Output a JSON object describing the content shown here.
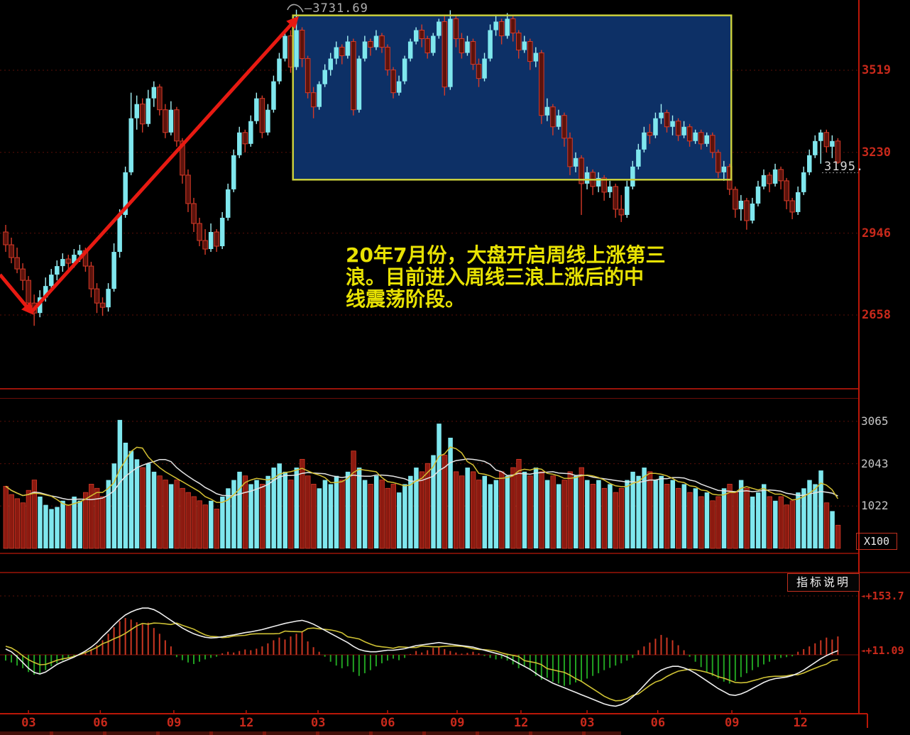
{
  "annotation": {
    "lines": [
      "20年7月份，大盘开启周线上涨第三",
      "浪。目前进入周线三浪上涨后的中",
      "线震荡阶段。"
    ]
  },
  "main_pane": {
    "peak_label": "—3731.69",
    "last_price_label": "3195."
  },
  "volume_pane": {
    "unit": "X100"
  },
  "indicator_pane": {
    "button_label": "指标说明",
    "labels": [
      {
        "marker": "◄",
        "text": "+153.7",
        "value": 153.7
      },
      {
        "marker": "◄",
        "text": "+11.09",
        "value": 11.09
      }
    ]
  },
  "x_axis": {
    "ticks": [
      {
        "label": "03",
        "week": 4.0
      },
      {
        "label": "06",
        "week": 16.6
      },
      {
        "label": "09",
        "week": 29.5
      },
      {
        "label": "12",
        "week": 42.2
      },
      {
        "label": "03",
        "week": 54.8
      },
      {
        "label": "06",
        "week": 67.0
      },
      {
        "label": "09",
        "week": 79.2
      },
      {
        "label": "12",
        "week": 90.4
      },
      {
        "label": "03",
        "week": 102.0
      },
      {
        "label": "06",
        "week": 114.4
      },
      {
        "label": "09",
        "week": 127.4
      },
      {
        "label": "12",
        "week": 139.4
      }
    ]
  },
  "colors": {
    "background": "#000000",
    "up": "#7fe7ee",
    "up_wick": "#a5f2f6",
    "down_fill": "#5c130c",
    "down_stroke": "#d53a28",
    "volume_down_fill": "#8c1a10",
    "macd_positive": "#cc3722",
    "macd_negative": "#21a121",
    "dif_line": "#efefef",
    "dea_line": "#cfc234",
    "volume_ma5": "#d4c032",
    "volume_ma10": "#e4e4e4",
    "grid_dashed": "#5a0f08",
    "pane_border": "#9c1409",
    "axis_line": "#bb1708",
    "box_fill": "#0d3066",
    "box_border": "#c9cf3d",
    "arrow": "#e81a12",
    "hook": "#a8a8a8",
    "dotted_price_line": "#999999"
  },
  "chart_data": {
    "type": "candlestick",
    "panes": [
      "price",
      "volume",
      "macd"
    ],
    "price_gridlines": [
      3519,
      3230,
      2946,
      2658
    ],
    "volume_gridlines": [
      3065,
      2043,
      1022
    ],
    "indicator_gridlines": [
      153.7
    ],
    "peak_marker": {
      "week": 51,
      "price": 3731.69
    },
    "last_close": 3195,
    "candles": [
      [
        2950,
        2975,
        2880,
        2905
      ],
      [
        2905,
        2930,
        2840,
        2860
      ],
      [
        2860,
        2895,
        2805,
        2820
      ],
      [
        2820,
        2840,
        2745,
        2780
      ],
      [
        2780,
        2795,
        2680,
        2700
      ],
      [
        2700,
        2730,
        2620,
        2665
      ],
      [
        2665,
        2745,
        2650,
        2720
      ],
      [
        2720,
        2790,
        2705,
        2760
      ],
      [
        2760,
        2820,
        2740,
        2800
      ],
      [
        2800,
        2850,
        2780,
        2830
      ],
      [
        2830,
        2875,
        2810,
        2855
      ],
      [
        2855,
        2870,
        2815,
        2840
      ],
      [
        2840,
        2890,
        2825,
        2870
      ],
      [
        2870,
        2905,
        2845,
        2885
      ],
      [
        2885,
        2895,
        2810,
        2830
      ],
      [
        2830,
        2845,
        2720,
        2750
      ],
      [
        2750,
        2770,
        2665,
        2700
      ],
      [
        2700,
        2720,
        2655,
        2685
      ],
      [
        2685,
        2770,
        2670,
        2750
      ],
      [
        2750,
        2910,
        2740,
        2880
      ],
      [
        2880,
        3030,
        2860,
        3010
      ],
      [
        3010,
        3180,
        3000,
        3160
      ],
      [
        3160,
        3440,
        3150,
        3350
      ],
      [
        3350,
        3430,
        3310,
        3400
      ],
      [
        3400,
        3420,
        3300,
        3330
      ],
      [
        3330,
        3450,
        3320,
        3420
      ],
      [
        3420,
        3480,
        3390,
        3460
      ],
      [
        3460,
        3470,
        3360,
        3380
      ],
      [
        3380,
        3400,
        3280,
        3300
      ],
      [
        3300,
        3410,
        3290,
        3380
      ],
      [
        3380,
        3390,
        3250,
        3270
      ],
      [
        3270,
        3280,
        3120,
        3150
      ],
      [
        3150,
        3170,
        3020,
        3050
      ],
      [
        3050,
        3070,
        2950,
        2980
      ],
      [
        2980,
        3000,
        2900,
        2920
      ],
      [
        2920,
        2960,
        2870,
        2890
      ],
      [
        2890,
        2980,
        2880,
        2950
      ],
      [
        2950,
        2960,
        2880,
        2900
      ],
      [
        2900,
        3020,
        2890,
        3000
      ],
      [
        3000,
        3120,
        2990,
        3100
      ],
      [
        3100,
        3240,
        3090,
        3220
      ],
      [
        3220,
        3320,
        3210,
        3300
      ],
      [
        3300,
        3310,
        3230,
        3260
      ],
      [
        3260,
        3360,
        3250,
        3340
      ],
      [
        3340,
        3440,
        3330,
        3420
      ],
      [
        3420,
        3430,
        3280,
        3300
      ],
      [
        3300,
        3400,
        3290,
        3380
      ],
      [
        3380,
        3500,
        3370,
        3480
      ],
      [
        3480,
        3580,
        3470,
        3560
      ],
      [
        3560,
        3660,
        3550,
        3640
      ],
      [
        3640,
        3660,
        3510,
        3530
      ],
      [
        3530,
        3732,
        3520,
        3660
      ],
      [
        3660,
        3670,
        3530,
        3560
      ],
      [
        3560,
        3570,
        3420,
        3440
      ],
      [
        3440,
        3460,
        3350,
        3390
      ],
      [
        3390,
        3480,
        3380,
        3470
      ],
      [
        3470,
        3540,
        3460,
        3520
      ],
      [
        3520,
        3580,
        3500,
        3560
      ],
      [
        3560,
        3620,
        3540,
        3600
      ],
      [
        3600,
        3610,
        3540,
        3570
      ],
      [
        3570,
        3640,
        3560,
        3620
      ],
      [
        3620,
        3630,
        3360,
        3380
      ],
      [
        3380,
        3570,
        3370,
        3560
      ],
      [
        3560,
        3640,
        3550,
        3620
      ],
      [
        3620,
        3630,
        3570,
        3600
      ],
      [
        3600,
        3660,
        3590,
        3640
      ],
      [
        3640,
        3650,
        3580,
        3600
      ],
      [
        3600,
        3610,
        3500,
        3520
      ],
      [
        3520,
        3530,
        3420,
        3440
      ],
      [
        3440,
        3500,
        3430,
        3480
      ],
      [
        3480,
        3570,
        3470,
        3560
      ],
      [
        3560,
        3630,
        3550,
        3620
      ],
      [
        3620,
        3670,
        3610,
        3660
      ],
      [
        3660,
        3680,
        3600,
        3630
      ],
      [
        3630,
        3640,
        3560,
        3580
      ],
      [
        3580,
        3650,
        3570,
        3640
      ],
      [
        3640,
        3700,
        3630,
        3690
      ],
      [
        3690,
        3715,
        3430,
        3460
      ],
      [
        3460,
        3730,
        3450,
        3700
      ],
      [
        3700,
        3710,
        3600,
        3630
      ],
      [
        3630,
        3650,
        3560,
        3580
      ],
      [
        3580,
        3640,
        3570,
        3620
      ],
      [
        3620,
        3630,
        3520,
        3540
      ],
      [
        3540,
        3560,
        3460,
        3490
      ],
      [
        3490,
        3580,
        3480,
        3560
      ],
      [
        3560,
        3680,
        3550,
        3660
      ],
      [
        3660,
        3715,
        3640,
        3690
      ],
      [
        3690,
        3700,
        3610,
        3640
      ],
      [
        3640,
        3720,
        3630,
        3700
      ],
      [
        3700,
        3710,
        3620,
        3650
      ],
      [
        3650,
        3660,
        3560,
        3590
      ],
      [
        3590,
        3640,
        3580,
        3620
      ],
      [
        3620,
        3630,
        3520,
        3550
      ],
      [
        3550,
        3600,
        3530,
        3580
      ],
      [
        3580,
        3590,
        3330,
        3360
      ],
      [
        3360,
        3420,
        3340,
        3390
      ],
      [
        3390,
        3400,
        3290,
        3320
      ],
      [
        3320,
        3380,
        3310,
        3360
      ],
      [
        3360,
        3370,
        3250,
        3280
      ],
      [
        3280,
        3300,
        3150,
        3180
      ],
      [
        3180,
        3230,
        3160,
        3210
      ],
      [
        3210,
        3220,
        3010,
        3120
      ],
      [
        3120,
        3180,
        3100,
        3160
      ],
      [
        3160,
        3170,
        3080,
        3110
      ],
      [
        3110,
        3160,
        3090,
        3140
      ],
      [
        3140,
        3150,
        3060,
        3090
      ],
      [
        3090,
        3130,
        3070,
        3110
      ],
      [
        3110,
        3120,
        3000,
        3030
      ],
      [
        3030,
        3080,
        2985,
        3010
      ],
      [
        3010,
        3130,
        3000,
        3110
      ],
      [
        3110,
        3200,
        3100,
        3180
      ],
      [
        3180,
        3260,
        3170,
        3240
      ],
      [
        3240,
        3320,
        3230,
        3300
      ],
      [
        3300,
        3330,
        3260,
        3290
      ],
      [
        3290,
        3370,
        3280,
        3350
      ],
      [
        3350,
        3400,
        3330,
        3370
      ],
      [
        3370,
        3380,
        3300,
        3320
      ],
      [
        3320,
        3360,
        3290,
        3340
      ],
      [
        3340,
        3350,
        3270,
        3290
      ],
      [
        3290,
        3340,
        3280,
        3320
      ],
      [
        3320,
        3330,
        3250,
        3270
      ],
      [
        3270,
        3310,
        3260,
        3300
      ],
      [
        3300,
        3310,
        3240,
        3260
      ],
      [
        3260,
        3300,
        3250,
        3290
      ],
      [
        3290,
        3300,
        3210,
        3230
      ],
      [
        3230,
        3240,
        3140,
        3160
      ],
      [
        3160,
        3200,
        3130,
        3180
      ],
      [
        3180,
        3190,
        3080,
        3100
      ],
      [
        3100,
        3110,
        3000,
        3030
      ],
      [
        3030,
        3080,
        2990,
        3060
      ],
      [
        3060,
        3070,
        2958,
        2990
      ],
      [
        2990,
        3070,
        2980,
        3050
      ],
      [
        3050,
        3130,
        3040,
        3110
      ],
      [
        3110,
        3170,
        3100,
        3150
      ],
      [
        3150,
        3160,
        3090,
        3120
      ],
      [
        3120,
        3190,
        3110,
        3170
      ],
      [
        3170,
        3180,
        3100,
        3130
      ],
      [
        3130,
        3140,
        3030,
        3060
      ],
      [
        3060,
        3070,
        2995,
        3020
      ],
      [
        3020,
        3110,
        3010,
        3090
      ],
      [
        3090,
        3180,
        3080,
        3160
      ],
      [
        3160,
        3240,
        3150,
        3220
      ],
      [
        3220,
        3290,
        3210,
        3270
      ],
      [
        3270,
        3310,
        3190,
        3300
      ],
      [
        3300,
        3310,
        3230,
        3250
      ],
      [
        3250,
        3290,
        3210,
        3270
      ],
      [
        3270,
        3280,
        3190,
        3195
      ]
    ],
    "volumes": [
      1500,
      1300,
      1200,
      1100,
      1400,
      1650,
      1250,
      1050,
      950,
      1000,
      1150,
      1050,
      1250,
      1150,
      1350,
      1550,
      1450,
      1250,
      1650,
      2050,
      3100,
      2550,
      2350,
      2150,
      1950,
      2050,
      1850,
      1750,
      1650,
      1550,
      1650,
      1450,
      1350,
      1250,
      1150,
      1050,
      1150,
      950,
      1250,
      1450,
      1650,
      1850,
      1750,
      1550,
      1650,
      1550,
      1750,
      1950,
      2050,
      1850,
      1650,
      1950,
      2150,
      1750,
      1550,
      1450,
      1650,
      1550,
      1750,
      1650,
      1850,
      2350,
      1950,
      1650,
      1550,
      1750,
      1650,
      1450,
      1550,
      1350,
      1550,
      1750,
      1950,
      1850,
      2050,
      2250,
      3010,
      2250,
      2670,
      1850,
      1750,
      1950,
      1850,
      1650,
      1750,
      1550,
      1650,
      1850,
      1750,
      1950,
      2150,
      1850,
      1750,
      1950,
      1850,
      1650,
      1750,
      1550,
      1650,
      1850,
      1750,
      1950,
      1650,
      1550,
      1650,
      1450,
      1550,
      1350,
      1450,
      1650,
      1850,
      1750,
      1950,
      1850,
      1650,
      1750,
      1550,
      1650,
      1450,
      1550,
      1350,
      1450,
      1250,
      1350,
      1150,
      1250,
      1450,
      1550,
      1350,
      1650,
      1450,
      1250,
      1350,
      1550,
      1250,
      1150,
      1250,
      1050,
      1150,
      1350,
      1450,
      1650,
      1550,
      1880,
      1100,
      900,
      560
    ],
    "macd": {
      "dif": [
        15,
        8,
        -5,
        -20,
        -35,
        -46,
        -50,
        -45,
        -35,
        -25,
        -18,
        -12,
        -6,
        2,
        10,
        20,
        32,
        48,
        62,
        78,
        92,
        104,
        112,
        118,
        122,
        122,
        118,
        110,
        100,
        90,
        80,
        70,
        62,
        55,
        50,
        46,
        44,
        45,
        47,
        50,
        52,
        55,
        58,
        60,
        63,
        66,
        70,
        74,
        78,
        82,
        85,
        88,
        90,
        86,
        80,
        72,
        64,
        56,
        48,
        40,
        32,
        22,
        14,
        10,
        8,
        8,
        10,
        12,
        12,
        14,
        16,
        20,
        24,
        26,
        28,
        30,
        32,
        30,
        28,
        26,
        24,
        22,
        20,
        16,
        12,
        8,
        4,
        0,
        -6,
        -14,
        -22,
        -30,
        -38,
        -48,
        -58,
        -66,
        -74,
        -80,
        -86,
        -92,
        -98,
        -104,
        -110,
        -116,
        -122,
        -128,
        -132,
        -134,
        -130,
        -122,
        -110,
        -96,
        -80,
        -64,
        -50,
        -40,
        -34,
        -30,
        -30,
        -34,
        -40,
        -48,
        -58,
        -68,
        -78,
        -88,
        -96,
        -104,
        -106,
        -102,
        -96,
        -88,
        -80,
        -72,
        -66,
        -62,
        -60,
        -58,
        -54,
        -48,
        -40,
        -30,
        -20,
        -10,
        -2,
        5,
        11
      ],
      "hist": [
        -15,
        -20,
        -28,
        -35,
        -45,
        -52,
        -48,
        -40,
        -30,
        -22,
        -15,
        -8,
        -4,
        3,
        8,
        15,
        25,
        38,
        55,
        72,
        88,
        96,
        92,
        85,
        80,
        84,
        70,
        55,
        38,
        22,
        -6,
        -14,
        -20,
        -24,
        -18,
        -12,
        -8,
        -5,
        4,
        8,
        6,
        10,
        14,
        12,
        16,
        22,
        30,
        38,
        45,
        40,
        48,
        55,
        60,
        35,
        20,
        8,
        -5,
        -18,
        -28,
        -35,
        -30,
        -45,
        -55,
        -48,
        -40,
        -30,
        -22,
        -15,
        -10,
        -14,
        -8,
        2,
        10,
        6,
        12,
        18,
        22,
        15,
        10,
        6,
        3,
        5,
        8,
        4,
        -3,
        -8,
        -12,
        -10,
        -15,
        -25,
        -35,
        -30,
        -40,
        -55,
        -65,
        -60,
        -70,
        -75,
        -81,
        -78,
        -72,
        -70,
        -62,
        -55,
        -48,
        -40,
        -34,
        -28,
        -22,
        -15,
        -8,
        12,
        22,
        32,
        42,
        52,
        45,
        38,
        25,
        12,
        -5,
        -18,
        -32,
        -45,
        -55,
        -62,
        -70,
        -75,
        -68,
        -58,
        -48,
        -40,
        -32,
        -25,
        -18,
        -12,
        -8,
        -6,
        -4,
        8,
        15,
        22,
        30,
        38,
        45,
        40,
        48
      ]
    },
    "annotations": {
      "box": {
        "week_from": 50.4,
        "week_to": 127.3,
        "price_top": 3712,
        "price_bottom": 3134
      },
      "arrows": [
        {
          "from_week": -1.0,
          "from_price": 2800,
          "to_week": 4.5,
          "to_price": 2668
        },
        {
          "from_week": 4.5,
          "from_price": 2668,
          "to_week": 51.0,
          "to_price": 3700
        }
      ]
    }
  }
}
